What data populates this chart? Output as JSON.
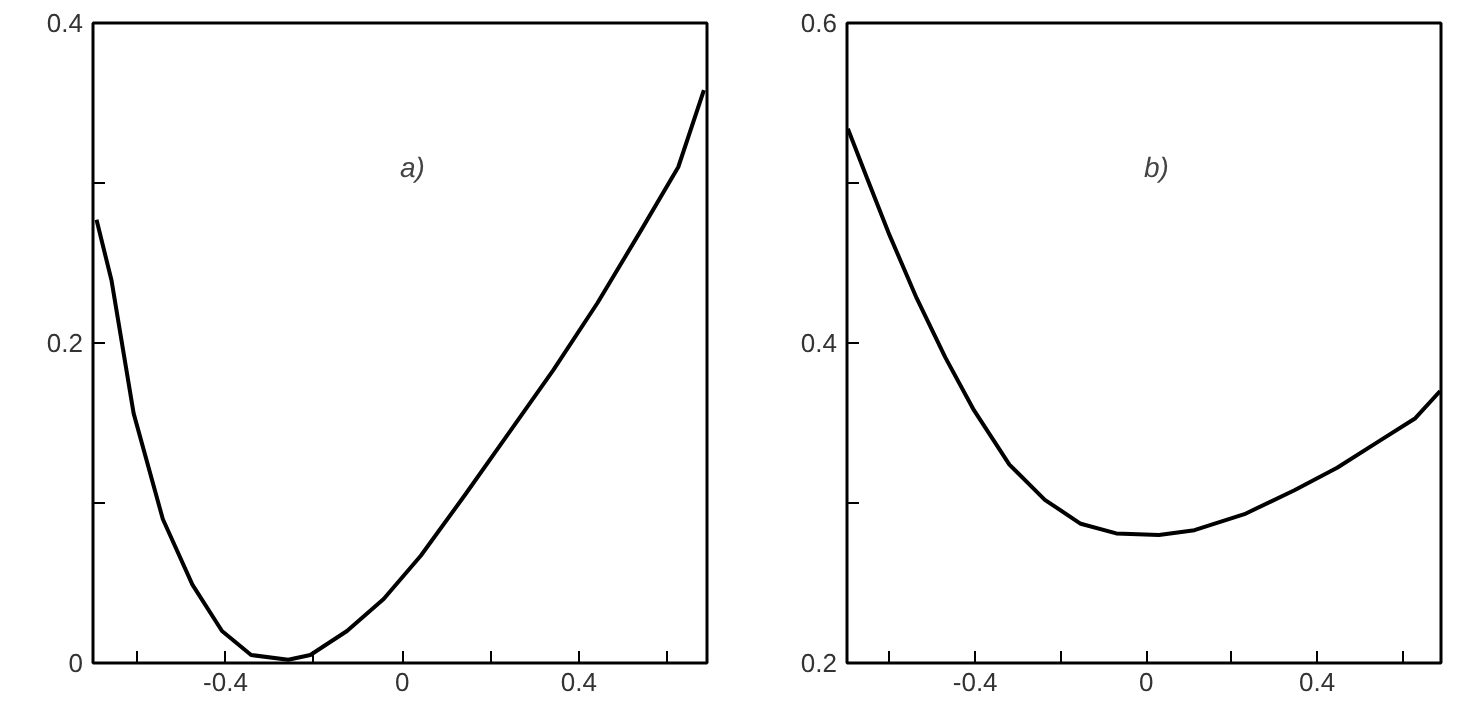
{
  "chart_data": [
    {
      "type": "line",
      "annotations": [
        "a)"
      ],
      "xlim": [
        -0.7,
        0.69
      ],
      "ylim": [
        0,
        0.4
      ],
      "xticks": [
        {
          "value": -0.6,
          "label": null
        },
        -0.4,
        {
          "value": -0.2,
          "label": null
        },
        0,
        {
          "value": 0.2,
          "label": null
        },
        0.4,
        {
          "value": 0.6,
          "label": null
        }
      ],
      "yticks": [
        0,
        {
          "value": 0.1,
          "label": null
        },
        0.2,
        {
          "value": 0.3,
          "label": null
        },
        0.4
      ],
      "grid": false,
      "marker": "none",
      "line_style": "solid",
      "series": [
        {
          "color": "#000000",
          "x": [
            -0.692,
            -0.658,
            -0.608,
            -0.542,
            -0.475,
            -0.408,
            -0.342,
            -0.258,
            -0.208,
            -0.125,
            -0.042,
            0.042,
            0.142,
            0.242,
            0.342,
            0.442,
            0.542,
            0.625,
            0.683
          ],
          "values": [
            0.277,
            0.239,
            0.156,
            0.09,
            0.049,
            0.02,
            0.005,
            0.002,
            0.005,
            0.02,
            0.04,
            0.067,
            0.105,
            0.144,
            0.183,
            0.225,
            0.271,
            0.31,
            0.358
          ]
        }
      ]
    },
    {
      "type": "line",
      "annotations": [
        "b)"
      ],
      "xlim": [
        -0.7,
        0.69
      ],
      "ylim": [
        0.2,
        0.6
      ],
      "xticks": [
        {
          "value": -0.6,
          "label": null
        },
        -0.4,
        {
          "value": -0.2,
          "label": null
        },
        0,
        {
          "value": 0.2,
          "label": null
        },
        0.4,
        {
          "value": 0.6,
          "label": null
        }
      ],
      "yticks": [
        0.2,
        {
          "value": 0.3,
          "label": null
        },
        0.4,
        {
          "value": 0.5,
          "label": null
        },
        0.6
      ],
      "grid": false,
      "marker": "none",
      "line_style": "solid",
      "series": [
        {
          "color": "#000000",
          "x": [
            -0.698,
            -0.653,
            -0.603,
            -0.537,
            -0.47,
            -0.403,
            -0.32,
            -0.237,
            -0.153,
            -0.07,
            0.03,
            0.113,
            0.23,
            0.347,
            0.447,
            0.547,
            0.63,
            0.688
          ],
          "values": [
            0.534,
            0.503,
            0.469,
            0.428,
            0.391,
            0.358,
            0.324,
            0.302,
            0.287,
            0.281,
            0.28,
            0.283,
            0.293,
            0.308,
            0.322,
            0.339,
            0.353,
            0.37
          ]
        }
      ]
    }
  ]
}
